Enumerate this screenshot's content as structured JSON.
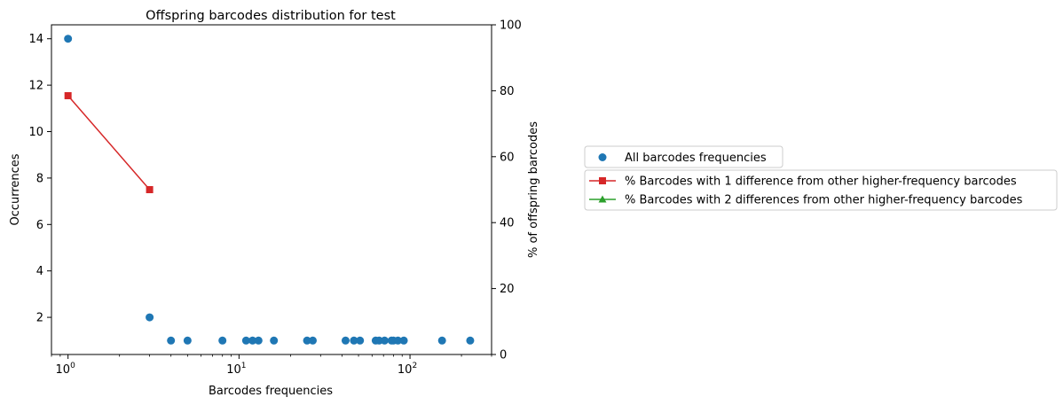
{
  "chart_data": {
    "type": "scatter",
    "title": "Offspring barcodes distribution for test",
    "xlabel": "Barcodes frequencies",
    "ylabel": "Occurrences",
    "y2label": "% of offspring barcodes",
    "xscale": "log",
    "xlim": [
      0.8,
      300
    ],
    "ylim": [
      0.4,
      14.6
    ],
    "y2lim": [
      0,
      100
    ],
    "x_ticks": [
      {
        "value": 1,
        "base": "10",
        "exp": "0"
      },
      {
        "value": 10,
        "base": "10",
        "exp": "1"
      },
      {
        "value": 100,
        "base": "10",
        "exp": "2"
      }
    ],
    "y_ticks": [
      {
        "value": 2,
        "label": "2"
      },
      {
        "value": 4,
        "label": "4"
      },
      {
        "value": 6,
        "label": "6"
      },
      {
        "value": 8,
        "label": "8"
      },
      {
        "value": 10,
        "label": "10"
      },
      {
        "value": 12,
        "label": "12"
      },
      {
        "value": 14,
        "label": "14"
      }
    ],
    "y2_ticks": [
      {
        "value": 0,
        "label": "0"
      },
      {
        "value": 20,
        "label": "20"
      },
      {
        "value": 40,
        "label": "40"
      },
      {
        "value": 60,
        "label": "60"
      },
      {
        "value": 80,
        "label": "80"
      },
      {
        "value": 100,
        "label": "100"
      }
    ],
    "scatter": {
      "name": "All barcodes frequencies",
      "color": "#1f77b4",
      "points": [
        [
          1,
          14
        ],
        [
          3,
          2
        ],
        [
          4,
          1
        ],
        [
          5,
          1
        ],
        [
          8,
          1
        ],
        [
          11,
          1
        ],
        [
          12,
          1
        ],
        [
          13,
          1
        ],
        [
          16,
          1
        ],
        [
          25,
          1
        ],
        [
          27,
          1
        ],
        [
          42,
          1
        ],
        [
          47,
          1
        ],
        [
          51,
          1
        ],
        [
          63,
          1
        ],
        [
          66,
          1
        ],
        [
          71,
          1
        ],
        [
          78,
          1
        ],
        [
          80,
          1
        ],
        [
          85,
          1
        ],
        [
          92,
          1
        ],
        [
          154,
          1
        ],
        [
          225,
          1
        ]
      ]
    },
    "lines": [
      {
        "name": "% Barcodes with 1 difference from other higher-frequency barcodes",
        "color": "#d62728",
        "marker": "square",
        "axis": "right",
        "points": [
          [
            1,
            78.5
          ],
          [
            3,
            50
          ]
        ]
      },
      {
        "name": "% Barcodes with 2 differences from other higher-frequency barcodes",
        "color": "#2ca02c",
        "marker": "triangle",
        "axis": "right",
        "points": []
      }
    ],
    "legend_placement": "right"
  }
}
